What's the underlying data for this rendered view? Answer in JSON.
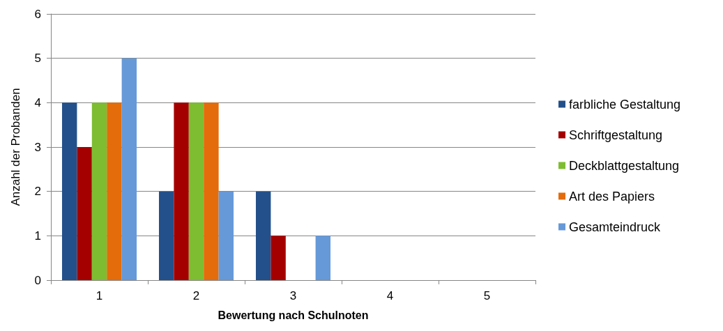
{
  "chart_data": {
    "type": "bar",
    "xlabel": "Bewertung nach Schulnoten",
    "ylabel": "Anzahl der Probanden",
    "categories": [
      "1",
      "2",
      "3",
      "4",
      "5"
    ],
    "series": [
      {
        "name": "farbliche Gestaltung",
        "color": "#23508a",
        "values": [
          4,
          2,
          2,
          0,
          0
        ]
      },
      {
        "name": "Schriftgestaltung",
        "color": "#a50000",
        "values": [
          3,
          4,
          1,
          0,
          0
        ]
      },
      {
        "name": "Deckblattgestaltung",
        "color": "#7ebd31",
        "values": [
          4,
          4,
          0,
          0,
          0
        ]
      },
      {
        "name": "Art des Papiers",
        "color": "#e46c0a",
        "values": [
          4,
          4,
          0,
          0,
          0
        ]
      },
      {
        "name": "Gesamteindruck",
        "color": "#6699d8",
        "values": [
          5,
          2,
          1,
          0,
          0
        ]
      }
    ],
    "ylim": [
      0,
      6
    ],
    "yticks": [
      0,
      1,
      2,
      3,
      4,
      5,
      6
    ],
    "grid": "y",
    "legend": "right"
  }
}
